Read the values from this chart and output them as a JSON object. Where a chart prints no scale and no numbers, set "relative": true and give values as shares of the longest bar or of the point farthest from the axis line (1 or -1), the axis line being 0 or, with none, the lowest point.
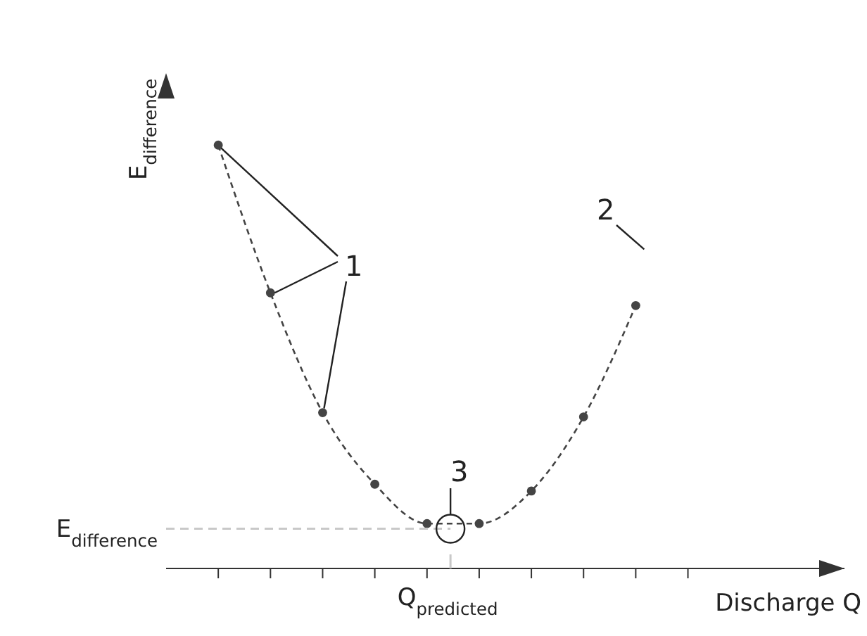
{
  "chart_data": {
    "type": "line",
    "relative": true,
    "xlabel": "Discharge Q",
    "ylabel": "E$_{difference}$",
    "categories": [
      null,
      null,
      null,
      null,
      null,
      null,
      null,
      null,
      null,
      null
    ],
    "series": [
      {
        "color": "#444444",
        "line_style": "dashed",
        "marker": "circle",
        "values": [
          1,
          0.651,
          0.368,
          0.199,
          0.106,
          0.106,
          0.183,
          0.358,
          0.621,
          null
        ]
      }
    ],
    "annotations": [
      "E$_{difference}$",
      "Q$_{predicted}$",
      "1",
      "2",
      "3"
    ]
  }
}
